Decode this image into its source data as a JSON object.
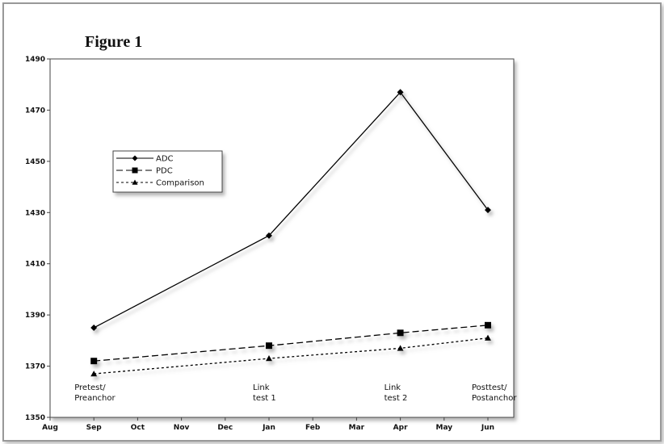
{
  "chart_data": {
    "type": "line",
    "title": "Figure 1",
    "categories": [
      "Aug",
      "Sep",
      "Oct",
      "Nov",
      "Dec",
      "Jan",
      "Feb",
      "Mar",
      "Apr",
      "May",
      "Jun"
    ],
    "series": [
      {
        "name": "ADC",
        "color": "#000000",
        "marker": "diamond",
        "dash": "solid",
        "x": [
          "Sep",
          "Jan",
          "Apr",
          "Jun"
        ],
        "values": [
          1385,
          1421,
          1477,
          1431
        ]
      },
      {
        "name": "PDC",
        "color": "#000000",
        "marker": "square",
        "dash": "long",
        "x": [
          "Sep",
          "Jan",
          "Apr",
          "Jun"
        ],
        "values": [
          1372,
          1378,
          1383,
          1386
        ]
      },
      {
        "name": "Comparison",
        "color": "#000000",
        "marker": "triangle",
        "dash": "short",
        "x": [
          "Sep",
          "Jan",
          "Apr",
          "Jun"
        ],
        "values": [
          1367,
          1373,
          1377,
          1381
        ]
      }
    ],
    "annotations": [
      {
        "x": "Sep",
        "lines": [
          "Pretest/",
          "Preanchor"
        ]
      },
      {
        "x": "Jan",
        "lines": [
          "Link",
          "test 1"
        ]
      },
      {
        "x": "Apr",
        "lines": [
          "Link",
          "test 2"
        ]
      },
      {
        "x": "Jun",
        "lines": [
          "Posttest/",
          "Postanchor"
        ]
      }
    ],
    "ylim": [
      1350,
      1490
    ],
    "yticks": [
      1350,
      1370,
      1390,
      1410,
      1430,
      1450,
      1470,
      1490
    ],
    "legend": "upper left"
  }
}
